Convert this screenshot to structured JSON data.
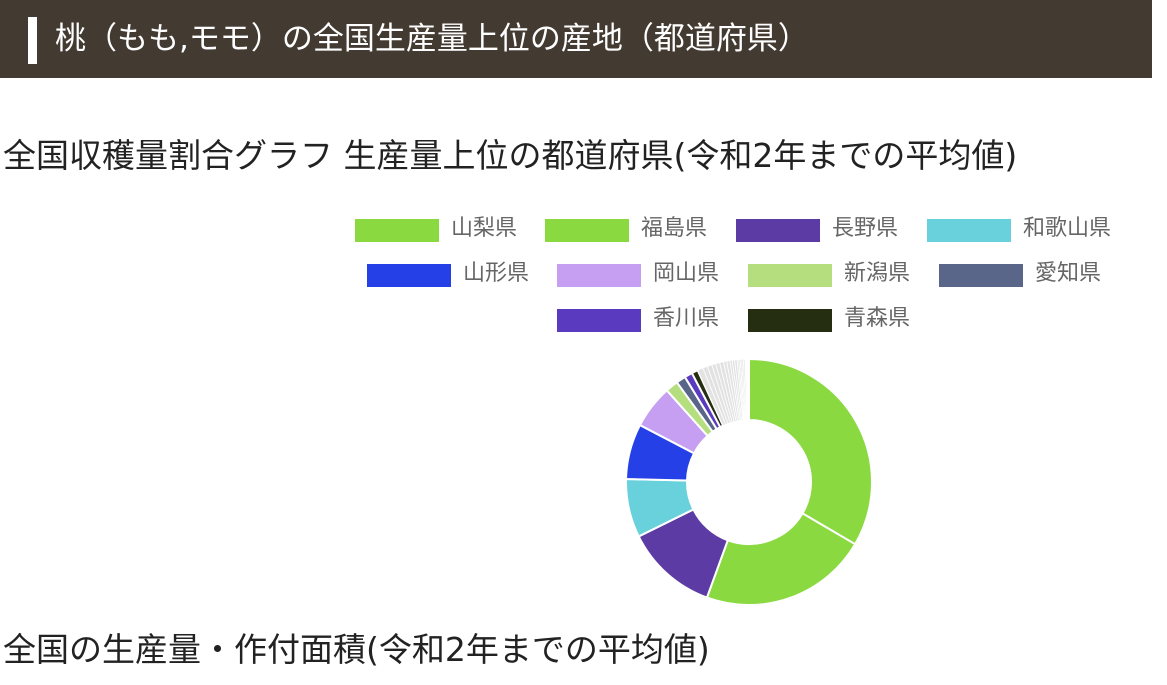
{
  "header": {
    "title": "桃（もも,モモ）の全国生産量上位の産地（都道府県）"
  },
  "chart_section": {
    "title": "全国収穫量割合グラフ 生産量上位の都道府県(令和2年までの平均値)"
  },
  "next_section": {
    "title": "全国の生産量・作付面積(令和2年までの平均値)"
  },
  "chart_data": {
    "type": "pie",
    "variant": "doughnut",
    "title": "全国収穫量割合グラフ 生産量上位の都道府県(令和2年までの平均値)",
    "unit": "%",
    "legend_position": "top",
    "categories": [
      "山梨県",
      "福島県",
      "長野県",
      "和歌山県",
      "山形県",
      "岡山県",
      "新潟県",
      "愛知県",
      "香川県",
      "青森県"
    ],
    "values": [
      32.2,
      21.3,
      11.7,
      7.4,
      7.0,
      5.5,
      1.6,
      1.2,
      1.0,
      0.8
    ],
    "other_small_values": [
      0.7,
      0.6,
      0.6,
      0.5,
      0.5,
      0.5,
      0.4,
      0.4,
      0.3,
      0.3,
      0.3,
      0.2,
      0.2,
      0.2,
      0.2,
      0.2,
      0.1,
      0.1,
      0.1,
      0.1,
      0.1
    ],
    "colors": [
      "#8ad941",
      "#8ad941",
      "#5d3ba4",
      "#68d1db",
      "#2540e6",
      "#c69ef2",
      "#b5de7e",
      "#5a6689",
      "#5a3bbf",
      "#262e12"
    ]
  }
}
